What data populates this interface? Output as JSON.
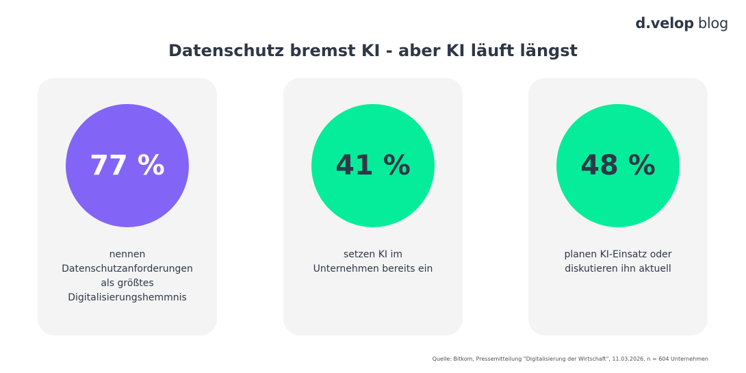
{
  "logo": {
    "brand": "d.velop",
    "suffix": "blog"
  },
  "title": "Datenschutz bremst KI - aber KI läuft längst",
  "cards": [
    {
      "value": "77 %",
      "lines": [
        "nennen",
        "Datenschutzanforderungen",
        "als größtes",
        "Digitalisierungshemmnis"
      ],
      "color": "#8265f7"
    },
    {
      "value": "41 %",
      "lines": [
        "setzen KI im",
        "Unternehmen bereits ein"
      ],
      "color": "#05ed9a"
    },
    {
      "value": "48 %",
      "lines": [
        "planen KI-Einsatz oder",
        "diskutieren ihn aktuell"
      ],
      "color": "#05ed9a"
    }
  ],
  "source": "Quelle: Bitkom, Pressemitteilung \"Digitalisierung der Wirtschaft\", 11.03.2026, n = 604 Unternehmen"
}
